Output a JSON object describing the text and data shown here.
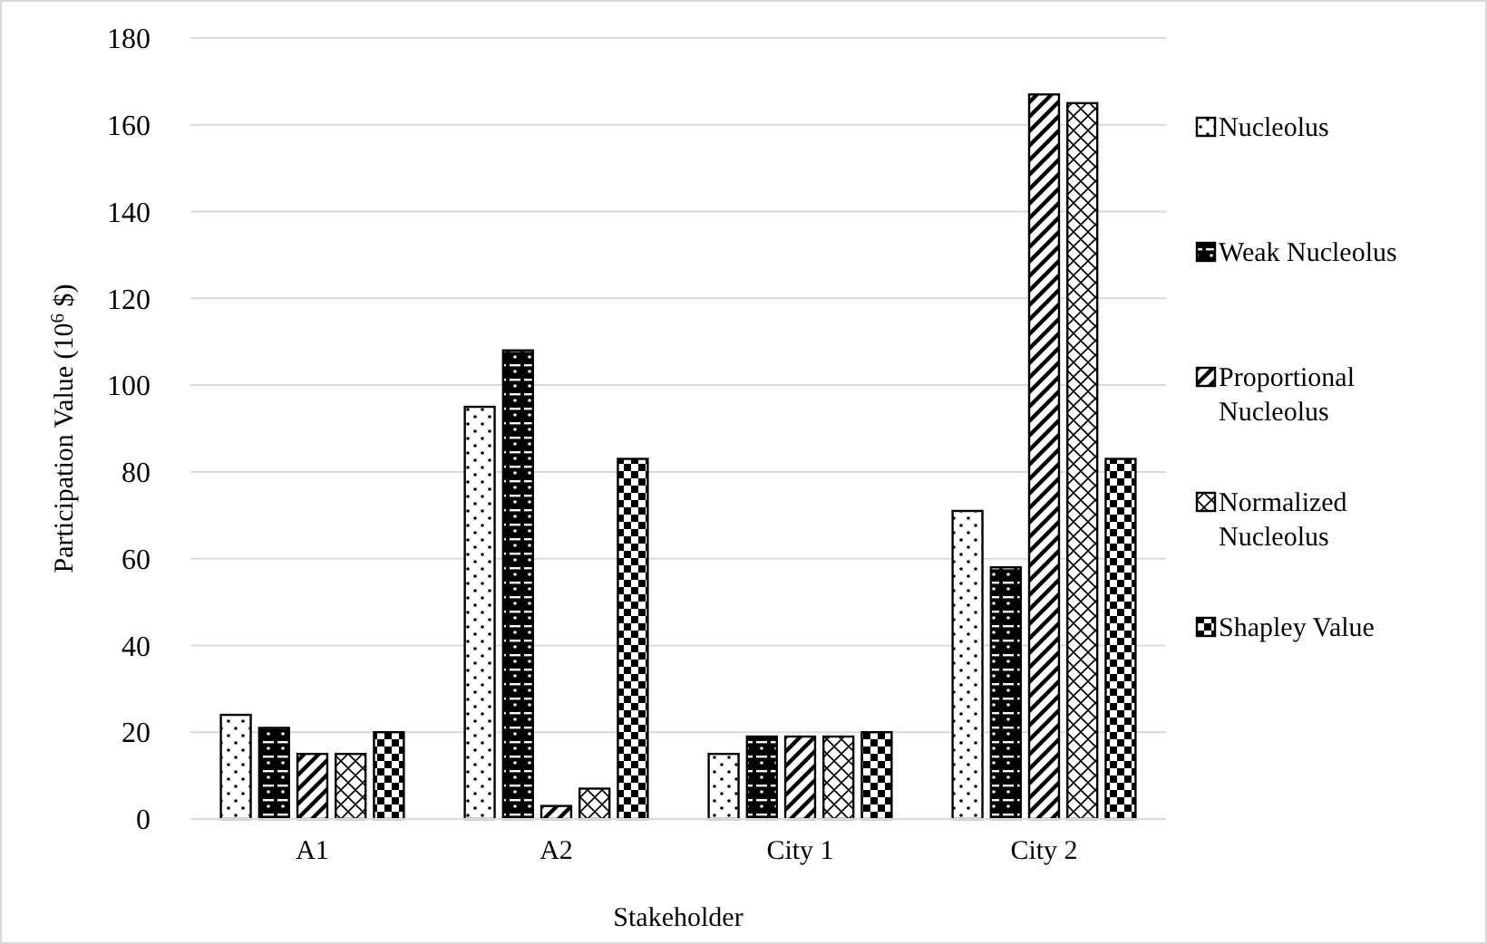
{
  "chart_data": {
    "type": "bar",
    "xlabel": "Stakeholder",
    "ylabel": "Participation Value (10$^{6}$ $)",
    "categories": [
      "A1",
      "A2",
      "City 1",
      "City 2"
    ],
    "series": [
      {
        "name": "Nucleolus",
        "color": "#000000",
        "values": [
          24,
          95,
          15,
          71
        ]
      },
      {
        "name": "Weak Nucleolus",
        "color": "#000000",
        "values": [
          21,
          108,
          19,
          58
        ]
      },
      {
        "name": "Proportional Nucleolus",
        "color": "#000000",
        "values": [
          15,
          3,
          19,
          167
        ]
      },
      {
        "name": "Normalized Nucleolus",
        "color": "#000000",
        "values": [
          15,
          7,
          19,
          165
        ]
      },
      {
        "name": "Shapley Value",
        "color": "#000000",
        "values": [
          20,
          83,
          20,
          83
        ]
      }
    ],
    "ylim": [
      0,
      180
    ],
    "yticks": [
      0,
      20,
      40,
      60,
      80,
      100,
      120,
      140,
      160,
      180
    ],
    "grid": "y",
    "legend": "right"
  }
}
